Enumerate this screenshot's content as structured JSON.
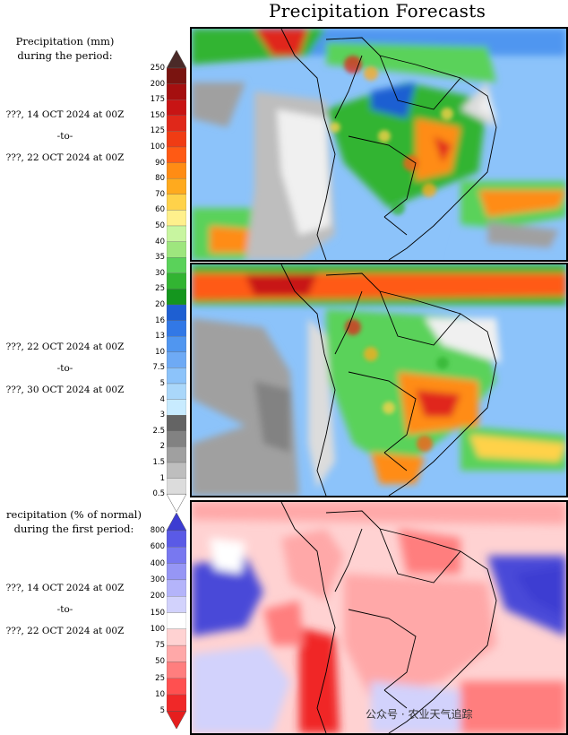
{
  "header": {
    "title": "Precipitation Forecasts"
  },
  "panel1": {
    "heading_line1": "Precipitation (mm)",
    "heading_line2": "during the period:",
    "date_from": "???, 14 OCT 2024 at 00Z",
    "date_to_word": "-to-",
    "date_to": "???, 22 OCT 2024 at 00Z"
  },
  "panel2": {
    "date_from": "???, 22 OCT 2024 at 00Z",
    "date_to_word": "-to-",
    "date_to": "???, 30 OCT 2024 at 00Z"
  },
  "panel3": {
    "heading_line1": "recipitation (% of normal)",
    "heading_line2": "during the first period:",
    "date_from": "???, 14 OCT 2024 at 00Z",
    "date_to_word": "-to-",
    "date_to": "???, 22 OCT 2024 at 00Z"
  },
  "legend_mm": {
    "ticks": [
      "250",
      "200",
      "175",
      "150",
      "125",
      "100",
      "90",
      "80",
      "70",
      "60",
      "50",
      "40",
      "35",
      "30",
      "25",
      "20",
      "16",
      "13",
      "10",
      "7.5",
      "5",
      "4",
      "3",
      "2.5",
      "2",
      "1.5",
      "1",
      "0.5"
    ],
    "colors": [
      "#4a2a28",
      "#7a1410",
      "#a50f0f",
      "#c81414",
      "#e0281a",
      "#f03c14",
      "#ff5a14",
      "#ff8c14",
      "#ffaa1e",
      "#ffd24a",
      "#fff08c",
      "#c8f5a0",
      "#9ee67e",
      "#5ad25a",
      "#32b432",
      "#14961e",
      "#1e5fd2",
      "#3278e6",
      "#5096f0",
      "#6eaaf5",
      "#8cc3fa",
      "#aad7fa",
      "#c8ebff",
      "#646464",
      "#828282",
      "#a0a0a0",
      "#bebebe",
      "#dcdcdc",
      "#ffffff"
    ]
  },
  "legend_pct": {
    "ticks": [
      "800",
      "600",
      "400",
      "300",
      "200",
      "150",
      "100",
      "75",
      "50",
      "25",
      "10",
      "5"
    ],
    "colors": [
      "#3c3cd2",
      "#5a5ae6",
      "#7878f0",
      "#9696f5",
      "#b4b4fa",
      "#d2d2fc",
      "#ffffff",
      "#ffd2d2",
      "#ffa8a8",
      "#ff7e7e",
      "#ff5050",
      "#f02828",
      "#e61e1e"
    ]
  },
  "watermark": {
    "text": "公众号 · 农业天气追踪"
  }
}
